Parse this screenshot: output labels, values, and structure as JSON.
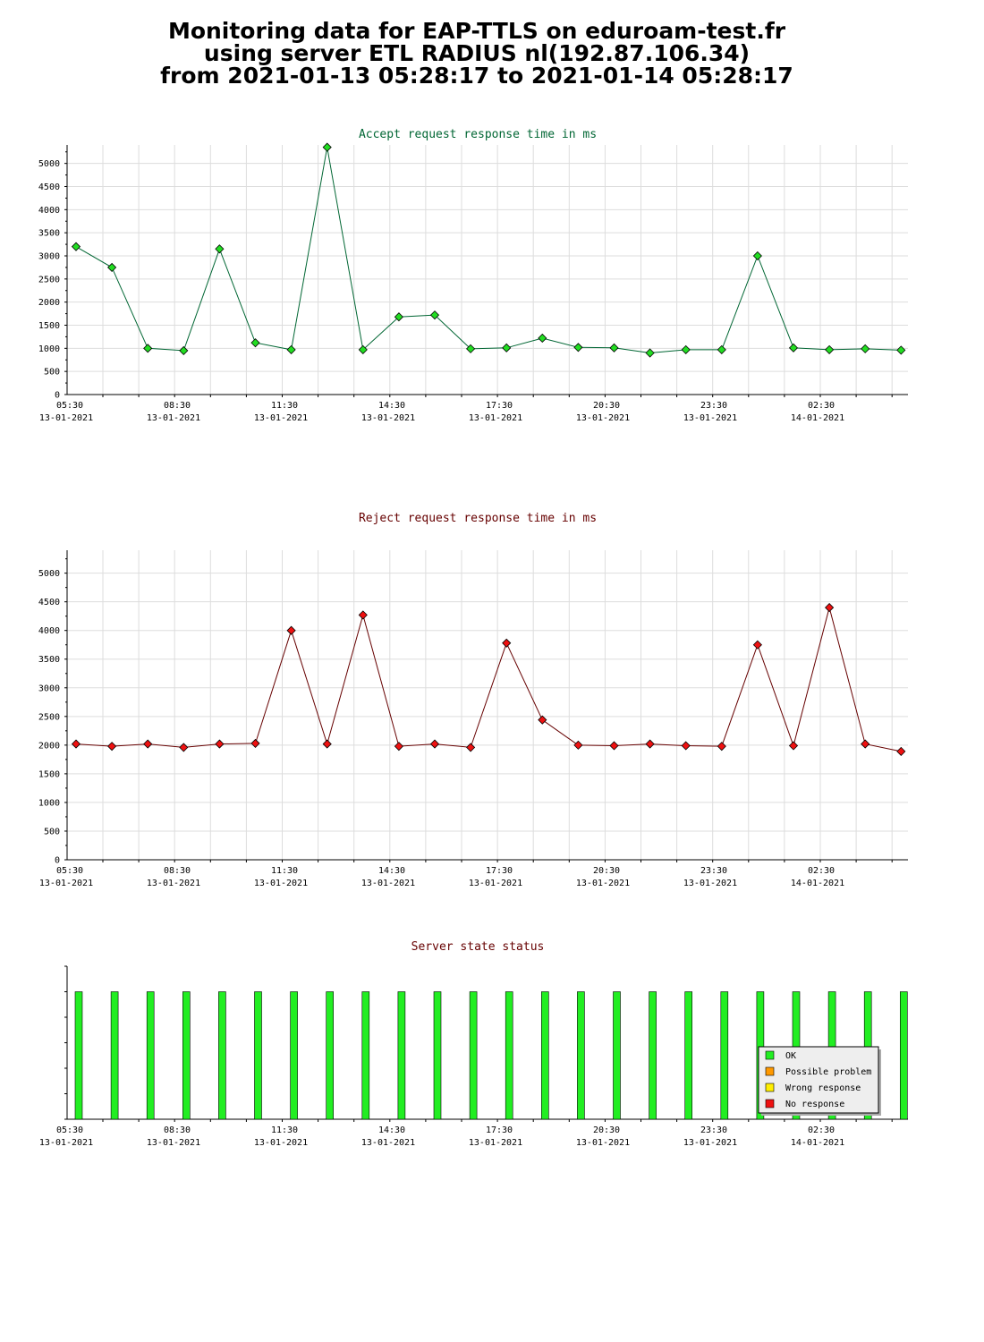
{
  "page": {
    "title_lines": [
      "Monitoring data for EAP-TTLS on eduroam-test.fr",
      "using server ETL RADIUS nl(192.87.106.34)",
      "from 2021-01-13 05:28:17 to 2021-01-14 05:28:17"
    ]
  },
  "time_axis": {
    "tick_labels": [
      {
        "time": "05:30",
        "date": "13-01-2021"
      },
      {
        "time": "08:30",
        "date": "13-01-2021"
      },
      {
        "time": "11:30",
        "date": "13-01-2021"
      },
      {
        "time": "14:30",
        "date": "13-01-2021"
      },
      {
        "time": "17:30",
        "date": "13-01-2021"
      },
      {
        "time": "20:30",
        "date": "13-01-2021"
      },
      {
        "time": "23:30",
        "date": "13-01-2021"
      },
      {
        "time": "02:30",
        "date": "14-01-2021"
      }
    ]
  },
  "chart_data": [
    {
      "type": "line",
      "title": "Accept request response time in ms",
      "title_color": "#006633",
      "line_color": "#006633",
      "marker_color": "#22dd22",
      "x": [
        "05:30",
        "06:30",
        "07:30",
        "08:30",
        "09:30",
        "10:30",
        "11:30",
        "12:30",
        "13:30",
        "14:30",
        "15:30",
        "16:30",
        "17:30",
        "18:30",
        "19:30",
        "20:30",
        "21:30",
        "22:30",
        "23:30",
        "00:30",
        "01:30",
        "02:30",
        "03:30",
        "04:30"
      ],
      "values": [
        3200,
        2750,
        1000,
        950,
        3150,
        1120,
        970,
        5350,
        970,
        1680,
        1720,
        990,
        1010,
        1220,
        1020,
        1010,
        900,
        970,
        970,
        3000,
        1010,
        970,
        990,
        960
      ],
      "ylim": [
        0,
        5400
      ],
      "yticks": [
        0,
        500,
        1000,
        1500,
        2000,
        2500,
        3000,
        3500,
        4000,
        4500,
        5000
      ],
      "grid": true
    },
    {
      "type": "line",
      "title": "Reject request response time in ms",
      "title_color": "#660000",
      "line_color": "#660000",
      "marker_color": "#ee1111",
      "x": [
        "05:30",
        "06:30",
        "07:30",
        "08:30",
        "09:30",
        "10:30",
        "11:30",
        "12:30",
        "13:30",
        "14:30",
        "15:30",
        "16:30",
        "17:30",
        "18:30",
        "19:30",
        "20:30",
        "21:30",
        "22:30",
        "23:30",
        "00:30",
        "01:30",
        "02:30",
        "03:30",
        "04:30"
      ],
      "values": [
        2020,
        1980,
        2020,
        1960,
        2020,
        2030,
        4000,
        2020,
        4270,
        1980,
        2020,
        1960,
        3780,
        2440,
        2000,
        1990,
        2020,
        1990,
        1980,
        3750,
        1990,
        4400,
        2020,
        1890
      ],
      "ylim": [
        0,
        5400
      ],
      "yticks": [
        0,
        500,
        1000,
        1500,
        2000,
        2500,
        3000,
        3500,
        4000,
        4500,
        5000
      ],
      "grid": true
    },
    {
      "type": "bar",
      "title": "Server state status",
      "title_color": "#660000",
      "categories": [
        "05:30",
        "06:30",
        "07:30",
        "08:30",
        "09:30",
        "10:30",
        "11:30",
        "12:30",
        "13:30",
        "14:30",
        "15:30",
        "16:30",
        "17:30",
        "18:30",
        "19:30",
        "20:30",
        "21:30",
        "22:30",
        "23:30",
        "00:30",
        "01:30",
        "02:30",
        "03:30",
        "04:30"
      ],
      "states": [
        "OK",
        "OK",
        "OK",
        "OK",
        "OK",
        "OK",
        "OK",
        "OK",
        "OK",
        "OK",
        "OK",
        "OK",
        "OK",
        "OK",
        "OK",
        "OK",
        "OK",
        "OK",
        "OK",
        "OK",
        "OK",
        "OK",
        "OK",
        "OK"
      ],
      "bar_level": 5,
      "ylim": [
        0,
        6
      ],
      "legend": {
        "placement": "bottom-right",
        "entries": [
          {
            "label": "OK",
            "color": "#22ee22"
          },
          {
            "label": "Possible problem",
            "color": "#ff9900"
          },
          {
            "label": "Wrong response",
            "color": "#ffee00"
          },
          {
            "label": "No response",
            "color": "#ee1111"
          }
        ]
      }
    }
  ]
}
